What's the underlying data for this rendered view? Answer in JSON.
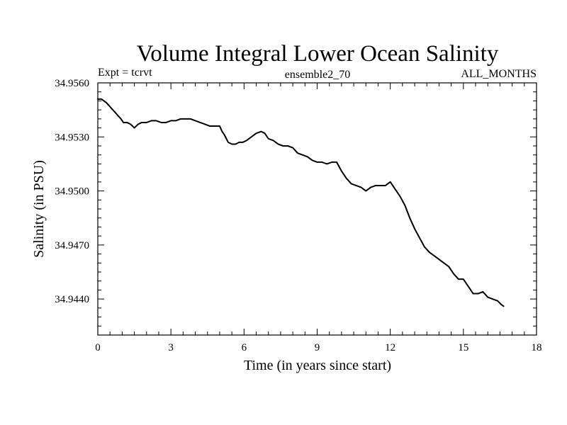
{
  "chart_data": {
    "type": "line",
    "title": "Volume Integral Lower Ocean Salinity",
    "subtitle_left": "Expt = tcrvt",
    "subtitle_center": "ensemble2_70",
    "subtitle_right": "ALL_MONTHS",
    "xlabel": "Time (in years since start)",
    "ylabel": "Salinity (in PSU)",
    "xlim": [
      0,
      18
    ],
    "ylim": [
      34.942,
      34.956
    ],
    "xticks": [
      0,
      3,
      6,
      9,
      12,
      15,
      18
    ],
    "xtick_labels": [
      "0",
      "3",
      "6",
      "9",
      "12",
      "15",
      "18"
    ],
    "yticks": [
      34.944,
      34.947,
      34.95,
      34.953,
      34.956
    ],
    "ytick_labels": [
      "34.9440",
      "34.9470",
      "34.9500",
      "34.9530",
      "34.9560"
    ],
    "x_minor_step": 0.5,
    "y_minor_step": 0.0005,
    "grid": false,
    "series": [
      {
        "name": "salinity",
        "color": "#000000",
        "x": [
          0.0,
          0.15,
          0.35,
          0.55,
          0.75,
          0.95,
          1.05,
          1.2,
          1.35,
          1.5,
          1.65,
          1.8,
          2.0,
          2.2,
          2.4,
          2.6,
          2.8,
          3.0,
          3.2,
          3.4,
          3.6,
          3.8,
          4.0,
          4.2,
          4.4,
          4.6,
          4.8,
          5.0,
          5.1,
          5.2,
          5.35,
          5.5,
          5.65,
          5.8,
          5.95,
          6.1,
          6.3,
          6.5,
          6.7,
          6.85,
          7.0,
          7.2,
          7.4,
          7.6,
          7.8,
          8.0,
          8.2,
          8.4,
          8.6,
          8.8,
          9.0,
          9.2,
          9.4,
          9.6,
          9.8,
          10.0,
          10.2,
          10.4,
          10.6,
          10.8,
          11.0,
          11.2,
          11.4,
          11.6,
          11.8,
          12.0,
          12.2,
          12.4,
          12.6,
          12.8,
          13.0,
          13.2,
          13.4,
          13.6,
          13.8,
          14.0,
          14.2,
          14.4,
          14.6,
          14.8,
          15.0,
          15.2,
          15.4,
          15.6,
          15.8,
          16.0,
          16.2,
          16.4,
          16.55,
          16.65
        ],
        "values": [
          34.9551,
          34.9551,
          34.9549,
          34.9546,
          34.9543,
          34.954,
          34.9538,
          34.9538,
          34.9537,
          34.9535,
          34.9537,
          34.9538,
          34.9538,
          34.9539,
          34.9539,
          34.9538,
          34.9538,
          34.9539,
          34.9539,
          34.954,
          34.954,
          34.954,
          34.9539,
          34.9538,
          34.9537,
          34.9536,
          34.9536,
          34.9536,
          34.9533,
          34.9531,
          34.9527,
          34.9526,
          34.9526,
          34.9527,
          34.9527,
          34.9528,
          34.953,
          34.9532,
          34.9533,
          34.9532,
          34.9529,
          34.9528,
          34.9526,
          34.9525,
          34.9525,
          34.9524,
          34.9521,
          34.952,
          34.9519,
          34.9517,
          34.9516,
          34.9516,
          34.9515,
          34.9516,
          34.9516,
          34.9511,
          34.9507,
          34.9504,
          34.9503,
          34.9502,
          34.95,
          34.9502,
          34.9503,
          34.9503,
          34.9503,
          34.9505,
          34.9501,
          34.9497,
          34.9492,
          34.9485,
          34.9479,
          34.9474,
          34.9469,
          34.9466,
          34.9464,
          34.9462,
          34.946,
          34.9458,
          34.9454,
          34.9451,
          34.9451,
          34.9447,
          34.9443,
          34.9443,
          34.9444,
          34.9441,
          34.944,
          34.9439,
          34.9437,
          34.9436
        ]
      }
    ]
  }
}
